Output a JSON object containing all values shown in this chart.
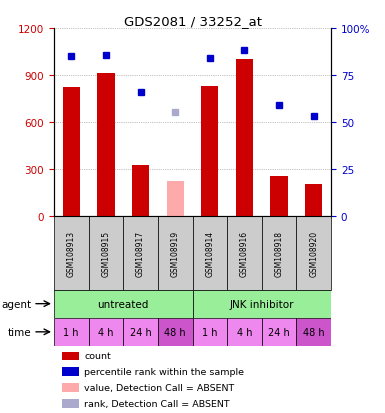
{
  "title": "GDS2081 / 33252_at",
  "samples": [
    "GSM108913",
    "GSM108915",
    "GSM108917",
    "GSM108919",
    "GSM108914",
    "GSM108916",
    "GSM108918",
    "GSM108920"
  ],
  "bar_values": [
    820,
    910,
    325,
    220,
    830,
    1000,
    255,
    200
  ],
  "bar_absent": [
    false,
    false,
    false,
    true,
    false,
    false,
    false,
    false
  ],
  "percentile_values": [
    1020,
    1030,
    790,
    660,
    1010,
    1060,
    710,
    640
  ],
  "percentile_absent": [
    false,
    false,
    false,
    true,
    false,
    false,
    false,
    false
  ],
  "ylim_left": [
    0,
    1200
  ],
  "ylim_right": [
    0,
    100
  ],
  "yticks_left": [
    0,
    300,
    600,
    900,
    1200
  ],
  "yticks_right": [
    0,
    25,
    50,
    75,
    100
  ],
  "bar_color_normal": "#cc0000",
  "bar_color_absent": "#ffaaaa",
  "dot_color_normal": "#0000cc",
  "dot_color_absent": "#aaaacc",
  "agent_untreated": "untreated",
  "agent_jnk": "JNK inhibitor",
  "time_labels": [
    "1 h",
    "4 h",
    "24 h",
    "48 h",
    "1 h",
    "4 h",
    "24 h",
    "48 h"
  ],
  "agent_color": "#99ee99",
  "time_color_normal": "#ee88ee",
  "time_color_absent_idx": [
    3,
    7
  ],
  "time_color_absent": "#cc55cc",
  "label_color_left": "#cc0000",
  "label_color_right": "#0000cc",
  "grid_color": "#888888",
  "sample_bg": "#cccccc",
  "legend": [
    {
      "label": "count",
      "color": "#cc0000"
    },
    {
      "label": "percentile rank within the sample",
      "color": "#0000cc"
    },
    {
      "label": "value, Detection Call = ABSENT",
      "color": "#ffaaaa"
    },
    {
      "label": "rank, Detection Call = ABSENT",
      "color": "#aaaacc"
    }
  ]
}
